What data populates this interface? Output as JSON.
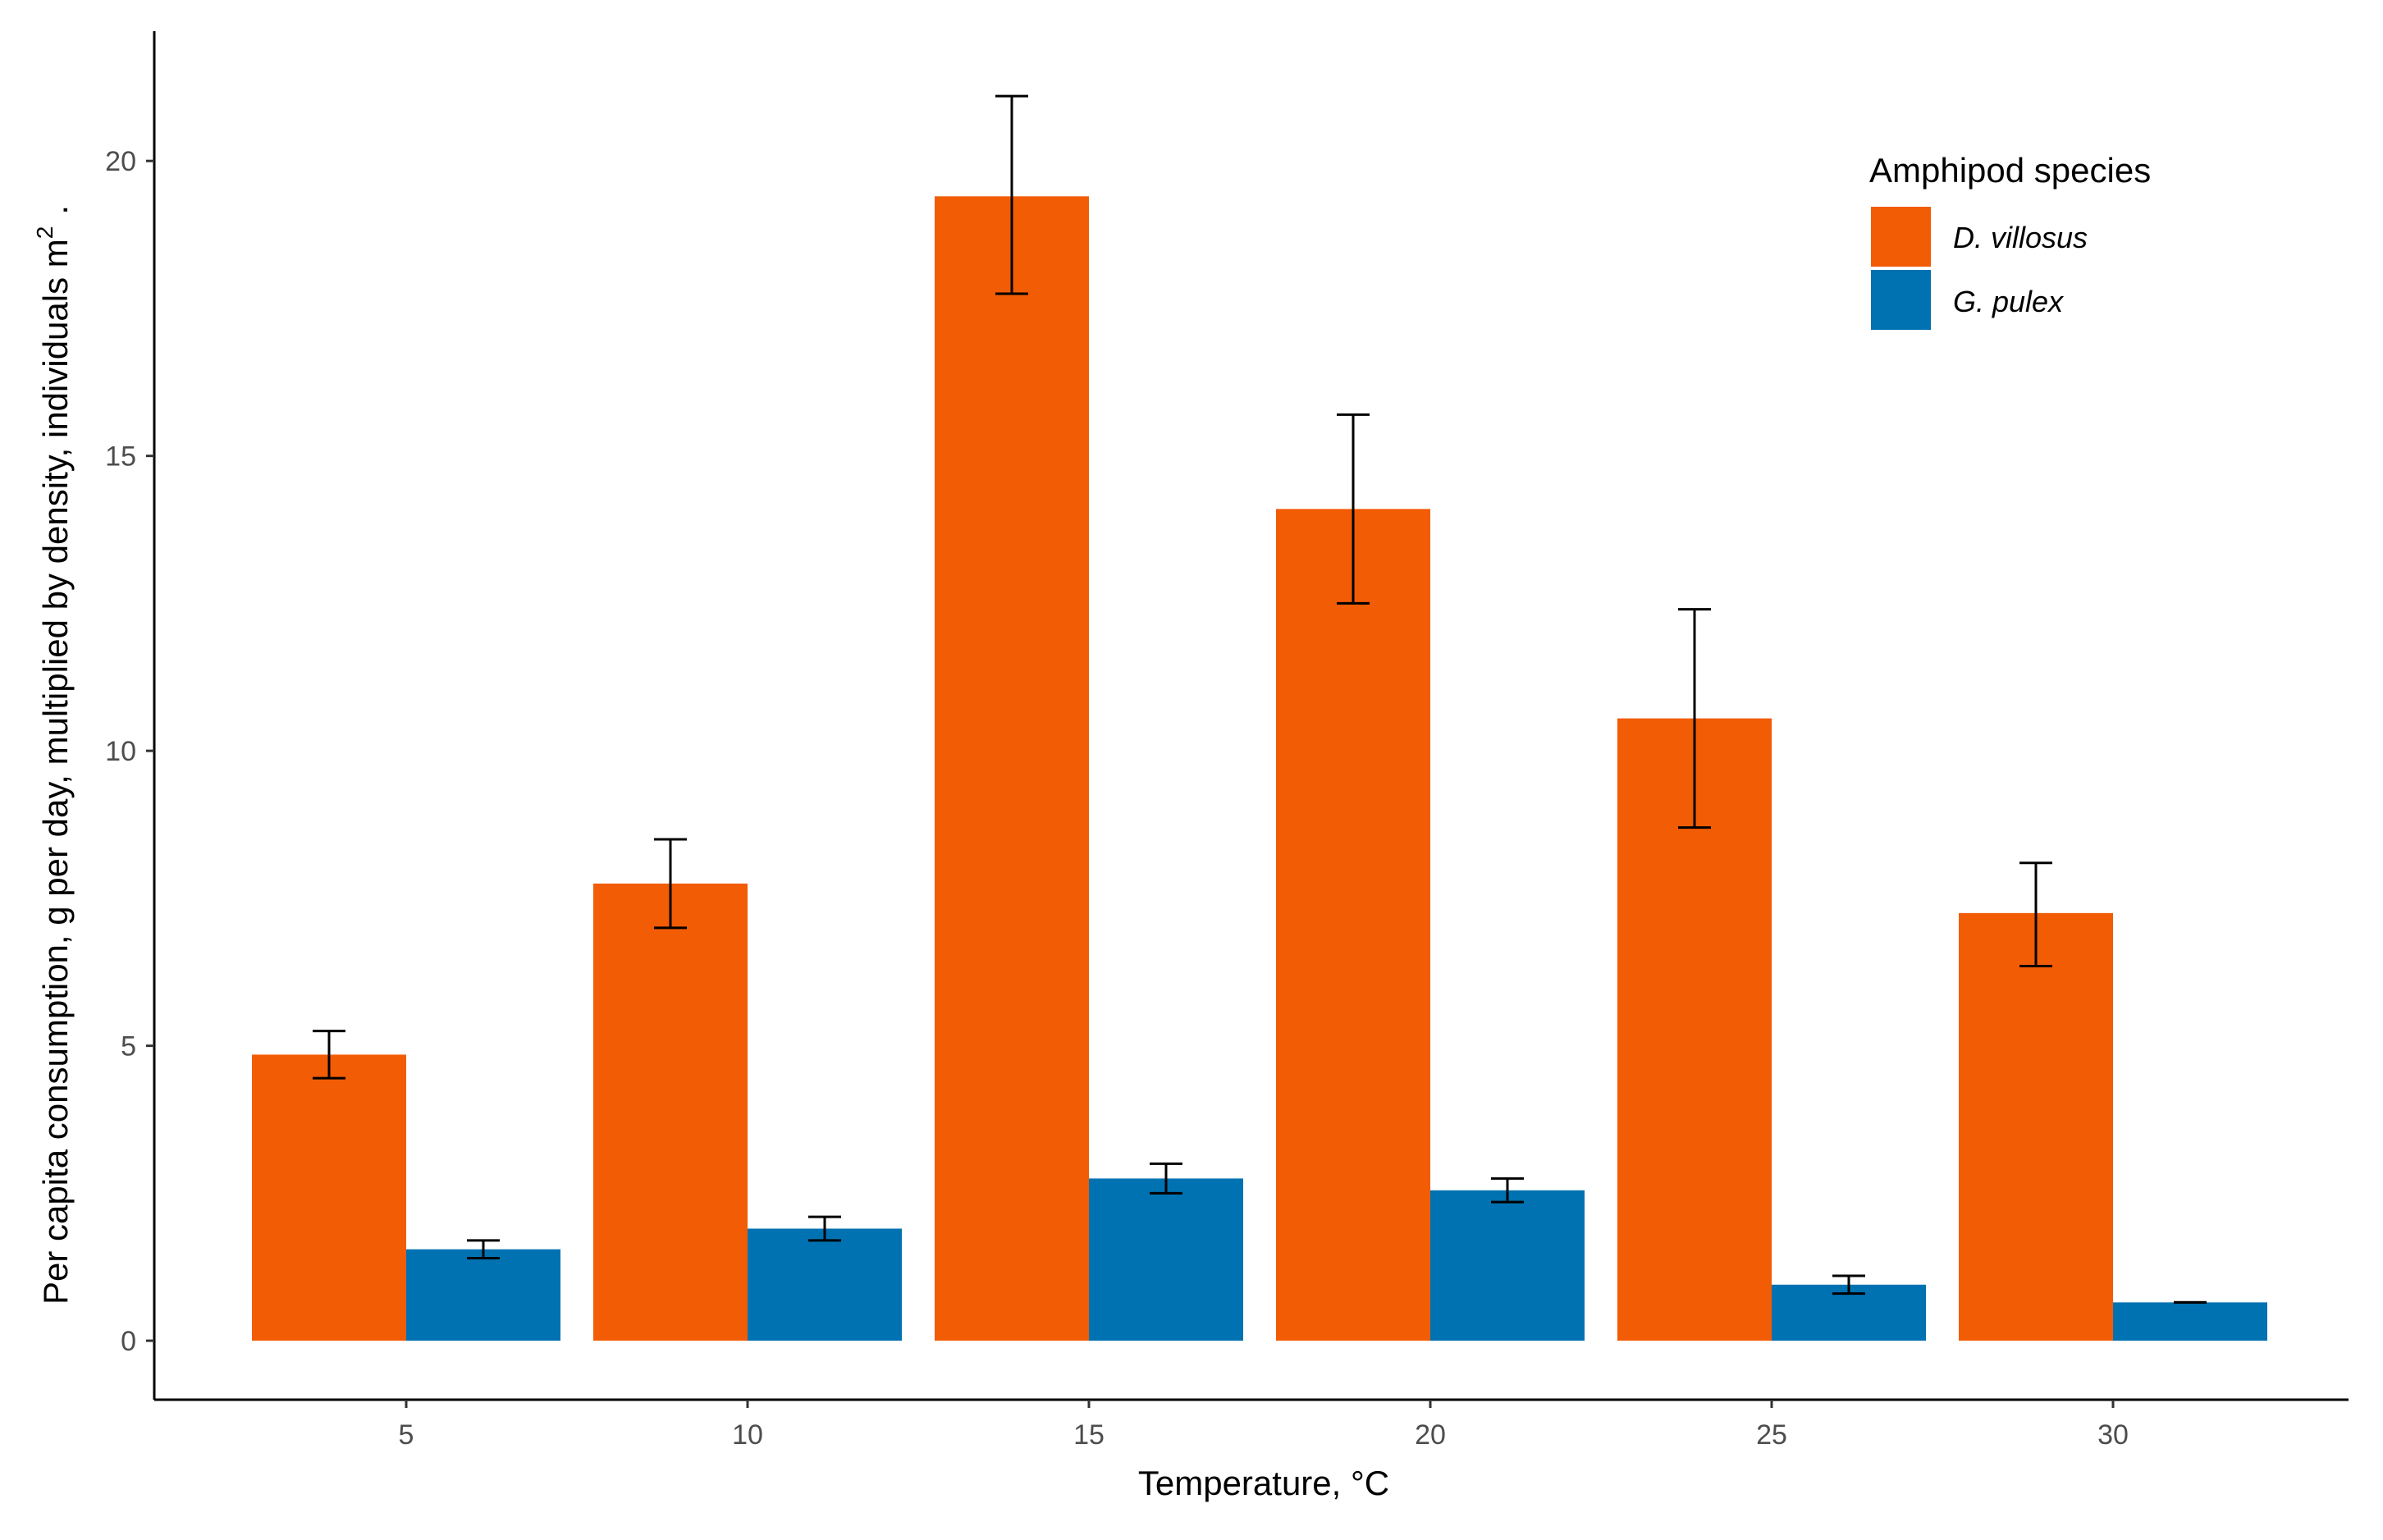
{
  "chart_data": {
    "type": "bar",
    "title": "",
    "xlabel": "Temperature, °C",
    "ylabel": "Per capita consumption, g per day, multiplied by density, individuals m",
    "ylabel_superscript": "2",
    "ylabel_suffix": ".",
    "categories": [
      "5",
      "10",
      "15",
      "20",
      "25",
      "30"
    ],
    "yticks": [
      "0",
      "5",
      "10",
      "15",
      "20"
    ],
    "ylim": [
      -1.0,
      22.2
    ],
    "legend": {
      "title": "Amphipod species",
      "position": "top-right"
    },
    "series": [
      {
        "name": "D. villosus",
        "color": "#F25C05",
        "values": [
          4.85,
          7.75,
          19.4,
          14.1,
          10.55,
          7.25
        ],
        "error_low": [
          4.45,
          7.0,
          17.75,
          12.5,
          8.7,
          6.35
        ],
        "error_high": [
          5.25,
          8.5,
          21.1,
          15.7,
          12.4,
          8.1
        ]
      },
      {
        "name": "G. pulex",
        "color": "#0072B2",
        "values": [
          1.55,
          1.9,
          2.75,
          2.55,
          0.95,
          0.65
        ],
        "error_low": [
          1.4,
          1.7,
          2.5,
          2.35,
          0.8,
          0.65
        ],
        "error_high": [
          1.7,
          2.1,
          3.0,
          2.75,
          1.1,
          0.65
        ]
      }
    ]
  }
}
